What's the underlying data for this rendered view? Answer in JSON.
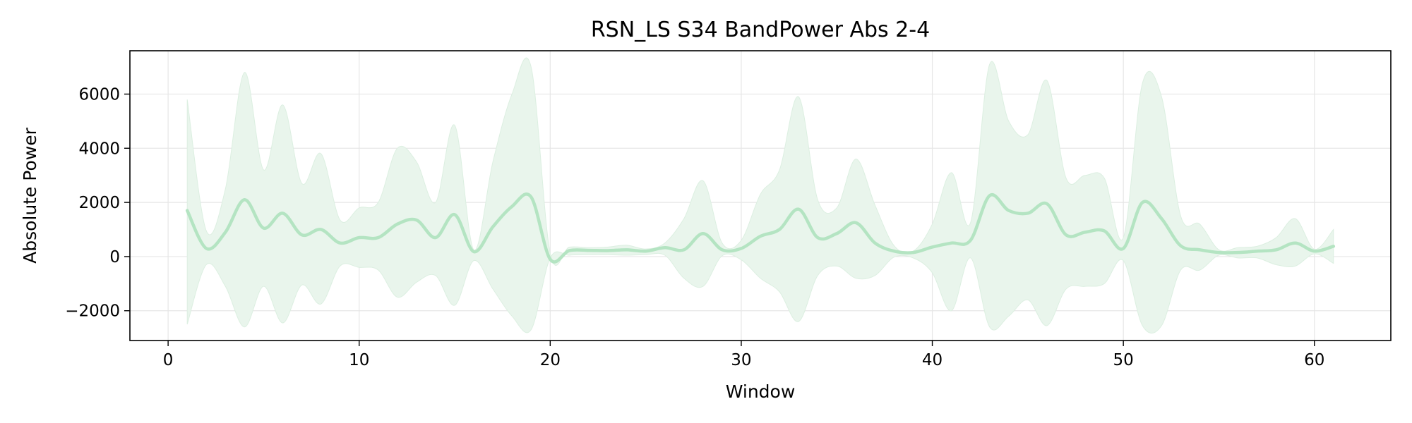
{
  "chart_data": {
    "type": "line",
    "title": "RSN_LS S34 BandPower Abs 2-4",
    "xlabel": "Window",
    "ylabel": "Absolute Power",
    "xlim": [
      -2,
      64
    ],
    "ylim": [
      -3100,
      7600
    ],
    "xticks": [
      0,
      10,
      20,
      30,
      40,
      50,
      60
    ],
    "yticks": [
      -2000,
      0,
      2000,
      4000,
      6000
    ],
    "ytick_labels": [
      "−2000",
      "0",
      "2000",
      "4000",
      "6000"
    ],
    "grid": true,
    "legend": "none",
    "colors": {
      "line": "#b4e4c2",
      "band": "#e9f5ec",
      "grid": "#e6e6e6"
    },
    "series": [
      {
        "x": [
          1,
          2,
          3,
          4,
          5,
          6,
          7,
          8,
          9,
          10,
          11,
          12,
          13,
          14,
          15,
          16,
          17,
          18,
          19,
          20,
          21,
          22,
          23,
          24,
          25,
          26,
          27,
          28,
          29,
          30,
          31,
          32,
          33,
          34,
          35,
          36,
          37,
          38,
          39,
          40,
          41,
          42,
          43,
          44,
          45,
          46,
          47,
          48,
          49,
          50,
          51,
          52,
          53,
          54,
          55,
          56,
          57,
          58,
          59,
          60,
          61
        ],
        "mean": [
          1700,
          300,
          900,
          2100,
          1050,
          1600,
          800,
          1000,
          500,
          700,
          700,
          1200,
          1350,
          700,
          1550,
          180,
          1100,
          1850,
          2200,
          -100,
          220,
          230,
          220,
          250,
          200,
          330,
          250,
          850,
          250,
          300,
          750,
          1000,
          1750,
          700,
          850,
          1250,
          500,
          200,
          150,
          350,
          500,
          600,
          2250,
          1700,
          1600,
          1950,
          800,
          900,
          950,
          300,
          2000,
          1400,
          400,
          250,
          150,
          150,
          200,
          250,
          500,
          200,
          380
        ],
        "upper": [
          5800,
          950,
          2500,
          6800,
          3200,
          5600,
          2700,
          3800,
          1350,
          1800,
          2000,
          4000,
          3500,
          2000,
          4850,
          250,
          3500,
          6000,
          7000,
          120,
          350,
          330,
          350,
          420,
          280,
          500,
          1400,
          2800,
          500,
          600,
          2300,
          3200,
          5900,
          2100,
          1800,
          3600,
          1900,
          400,
          200,
          1200,
          3100,
          1250,
          7100,
          5000,
          4500,
          6500,
          2900,
          3000,
          2900,
          700,
          6400,
          5900,
          1500,
          1200,
          250,
          330,
          380,
          700,
          1400,
          270,
          1000
        ],
        "lower": [
          -2500,
          -300,
          -1100,
          -2600,
          -1100,
          -2450,
          -1050,
          -1750,
          -350,
          -400,
          -500,
          -1500,
          -950,
          -700,
          -1800,
          -150,
          -1200,
          -2200,
          -2700,
          -50,
          50,
          70,
          70,
          50,
          70,
          50,
          -800,
          -1100,
          30,
          -120,
          -800,
          -1300,
          -2400,
          -700,
          -350,
          -800,
          -700,
          -20,
          -50,
          -600,
          -2000,
          -50,
          -2600,
          -2200,
          -1600,
          -2550,
          -1200,
          -1100,
          -1000,
          -150,
          -2550,
          -2550,
          -500,
          -500,
          50,
          -50,
          -50,
          -300,
          -350,
          100,
          -250
        ]
      }
    ]
  }
}
